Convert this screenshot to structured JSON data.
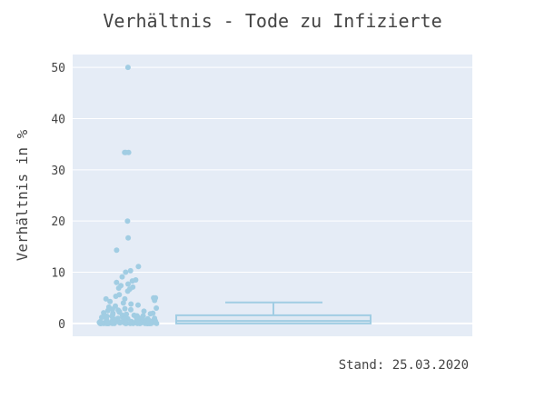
{
  "chart_data": {
    "type": "box",
    "title": "Verhältnis - Tode zu Infizierte",
    "xlabel": "",
    "ylabel": "Verhältnis in %",
    "annotation": "Stand: 25.03.2020",
    "ylim": [
      -2.5,
      52.5
    ],
    "yticks": [
      0,
      10,
      20,
      30,
      40,
      50
    ],
    "grid": true,
    "colors": {
      "plot_bg": "#e5ecf6",
      "grid": "#ffffff",
      "marker": "#a1cde3",
      "box_fill": "#dfe9f3",
      "box_line": "#a1cde3"
    },
    "box": {
      "min": 0,
      "q1": 0,
      "median": 0.5,
      "q3": 1.6,
      "upper_fence": 4.1
    },
    "points": [
      50.0,
      33.4,
      33.4,
      33.4,
      20.0,
      16.7,
      14.3,
      11.1,
      10.3,
      10.0,
      9.1,
      8.5,
      8.3,
      8.0,
      7.7,
      7.4,
      7.1,
      6.9,
      6.7,
      6.3,
      5.6,
      5.3,
      5.0,
      5.0,
      4.8,
      4.8,
      4.5,
      4.3,
      4.0,
      3.8,
      3.6,
      3.4,
      3.2,
      3.0,
      2.9,
      2.8,
      2.7,
      2.6,
      2.5,
      2.4,
      2.3,
      2.2,
      2.1,
      2.0,
      2.0,
      1.9,
      1.8,
      1.7,
      1.6,
      1.6,
      1.5,
      1.5,
      1.4,
      1.4,
      1.3,
      1.3,
      1.2,
      1.2,
      1.1,
      1.1,
      1.0,
      1.0,
      1.0,
      0.9,
      0.9,
      0.9,
      0.8,
      0.8,
      0.8,
      0.7,
      0.7,
      0.7,
      0.6,
      0.6,
      0.6,
      0.5,
      0.5,
      0.5,
      0.5,
      0.4,
      0.4,
      0.4,
      0.4,
      0.3,
      0.3,
      0.3,
      0.3,
      0.2,
      0.2,
      0.2,
      0.2,
      0.1,
      0.1,
      0.1,
      0.1,
      0.0,
      0.0,
      0.0,
      0.0,
      0.0,
      0.0,
      0.0,
      0.0,
      0.0,
      0.0,
      0.0,
      0.0,
      0.0,
      0.0,
      0.0,
      0.0,
      0.0,
      0.0,
      0.0,
      0.0,
      0.0,
      0.0,
      0.0,
      0.0,
      0.0
    ]
  }
}
